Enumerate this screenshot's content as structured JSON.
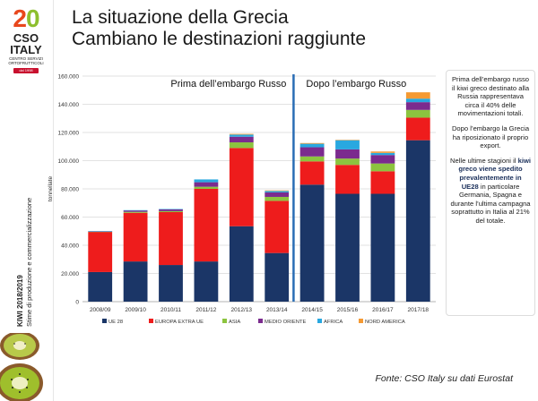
{
  "logo": {
    "number_a": "2",
    "number_b": "0",
    "name": "CSO ITALY",
    "tagline": "CENTRO SERVIZI ORTOFRUTTICOLI",
    "badge": "dal 1998"
  },
  "sidebar_text": {
    "line1": "KIWI 2018/2019",
    "line2": "Stime di produzione e commercializzazione"
  },
  "title": {
    "line1": "La situazione della Grecia",
    "line2": "Cambiano le destinazioni raggiunte"
  },
  "note": {
    "p1": "Prima dell’embargo russo il kiwi greco destinato alla Russia rappresentava circa il 40% delle movimentazioni totali.",
    "p2": "Dopo l’embargo la Grecia ha riposizionato il proprio export.",
    "p3a": "Nelle ultime stagioni il",
    "p3b": "kiwi greco viene spedito prevalentemente in UE28",
    "p3c": "in particolare Germania, Spagna e durante l’ultima campagna soprattutto in Italia al 21% del totale."
  },
  "source": "Fonte: CSO Italy su dati Eurostat",
  "colors": {
    "ue28": "#1b3667",
    "europa": "#ee1c1c",
    "asia": "#8cc43f",
    "medio_oriente": "#7b2b8e",
    "africa": "#29a8e0",
    "nord_america": "#f59a33",
    "divider": "#2a6db5"
  },
  "chart_data": {
    "type": "bar",
    "stacked": true,
    "ylabel": "tonnellate",
    "ylim": [
      0,
      160000
    ],
    "yticks": [
      "0",
      "20.000",
      "40.000",
      "60.000",
      "80.000",
      "100.000",
      "120.000",
      "140.000",
      "160.000"
    ],
    "categories": [
      "2008/09",
      "2009/10",
      "2010/11",
      "2011/12",
      "2012/13",
      "2013/14",
      "2014/15",
      "2015/16",
      "2016/17",
      "2017/18"
    ],
    "series": [
      {
        "name": "UE 28",
        "values": [
          21000,
          28500,
          26000,
          28500,
          53500,
          34500,
          83000,
          76500,
          76500,
          114500
        ]
      },
      {
        "name": "EUROPA EXTRA UE",
        "values": [
          28500,
          34500,
          37500,
          51500,
          55500,
          37000,
          16500,
          20500,
          16000,
          16000
        ]
      },
      {
        "name": "ASIA",
        "values": [
          200,
          700,
          700,
          1500,
          4000,
          2800,
          3500,
          4500,
          5500,
          5500
        ]
      },
      {
        "name": "MEDIO ORIENTE",
        "values": [
          200,
          1000,
          1300,
          3200,
          4000,
          3200,
          6500,
          6500,
          6000,
          5500
        ]
      },
      {
        "name": "AFRICA",
        "values": [
          100,
          200,
          200,
          2000,
          1500,
          1000,
          2500,
          6500,
          1500,
          2500
        ]
      },
      {
        "name": "NORD AMERICA",
        "values": [
          0,
          0,
          0,
          0,
          500,
          400,
          500,
          300,
          1000,
          4500
        ]
      }
    ],
    "annotations": {
      "before": "Prima dell’embargo Russo",
      "after": "Dopo l’embargo Russo"
    },
    "legend_position": "bottom"
  }
}
